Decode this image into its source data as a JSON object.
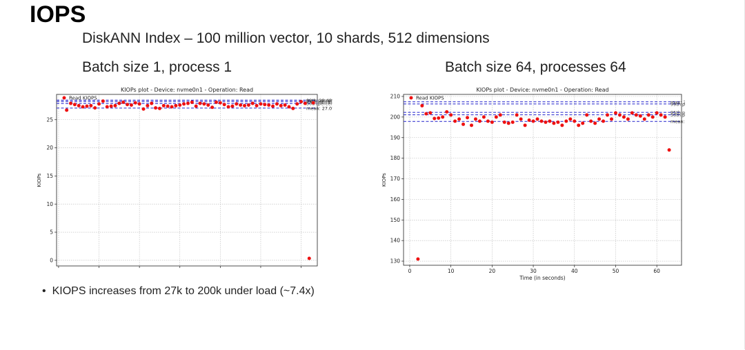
{
  "slide": {
    "title": "IOPS",
    "subtitle": "DiskANN Index – 100 million vector, 10 shards, 512 dimensions",
    "left_caption": "Batch size 1, process 1",
    "right_caption": "Batch size 64, processes 64",
    "bullet_symbol": "•",
    "bullet": "KIOPS increases from 27k to 200k under load (~7.4x)"
  },
  "colors": {
    "points": "#ee1111",
    "stat_lines": "#2222cc",
    "grid": "#b8b8b8"
  },
  "chart_data": [
    {
      "type": "scatter",
      "title": "KIOPs plot - Device: nvme0n1 - Operation: Read",
      "xlabel": "",
      "ylabel": "KIOPs",
      "legend": "Read KIOPS",
      "legend_position": "top-left",
      "xlim": [
        -0.5,
        64
      ],
      "ylim": [
        -1,
        29.5
      ],
      "xticks": [
        0,
        10,
        20,
        30,
        40,
        50,
        60
      ],
      "show_xtick_labels": false,
      "yticks": [
        0,
        5,
        10,
        15,
        20,
        25
      ],
      "grid": true,
      "x": [
        2,
        3,
        4,
        5,
        6,
        7,
        8,
        9,
        10,
        11,
        12,
        13,
        14,
        15,
        16,
        17,
        18,
        19,
        20,
        21,
        22,
        23,
        24,
        25,
        26,
        27,
        28,
        29,
        30,
        31,
        32,
        33,
        34,
        35,
        36,
        37,
        38,
        39,
        40,
        41,
        42,
        43,
        44,
        45,
        46,
        47,
        48,
        49,
        50,
        51,
        52,
        53,
        54,
        55,
        56,
        57,
        58,
        59,
        60,
        61,
        62,
        63
      ],
      "y": [
        26.7,
        27.9,
        27.7,
        27.5,
        27.3,
        27.4,
        27.5,
        27.1,
        27.8,
        28.3,
        27.3,
        27.4,
        27.5,
        27.9,
        28.1,
        27.7,
        27.6,
        28.0,
        27.8,
        26.9,
        27.5,
        27.9,
        27.1,
        27.0,
        27.5,
        27.4,
        27.3,
        27.5,
        27.6,
        27.8,
        27.9,
        28.1,
        27.4,
        27.9,
        27.8,
        27.6,
        27.2,
        28.1,
        28.0,
        27.7,
        27.3,
        27.4,
        27.8,
        27.6,
        27.5,
        27.6,
        27.9,
        27.5,
        27.8,
        27.7,
        27.6,
        27.4,
        27.8,
        27.5,
        27.6,
        27.3,
        27.0,
        27.8,
        28.2,
        27.9,
        0.35,
        28.0
      ],
      "reference_lines": [
        {
          "name": "max",
          "value": 28.48,
          "label": "max: 28.48"
        },
        {
          "name": "p99",
          "value": 28.44,
          "label": "99th percentile: 28.44"
        },
        {
          "name": "p95",
          "value": 28.2,
          "label": "95th percentile: 28.20"
        },
        {
          "name": "p50",
          "value": 27.88,
          "label": "50th percentile: 27.88"
        },
        {
          "name": "mean",
          "value": 27.07,
          "label": "mean: 27.07"
        }
      ]
    },
    {
      "type": "scatter",
      "title": "KIOPs plot - Device: nvme0n1 - Operation: Read",
      "xlabel": "Time (in seconds)",
      "ylabel": "KIOPs",
      "legend": "Read KIOPS",
      "legend_position": "top-left",
      "xlim": [
        -1.5,
        66
      ],
      "ylim": [
        128,
        211
      ],
      "xticks": [
        0,
        10,
        20,
        30,
        40,
        50,
        60
      ],
      "show_xtick_labels": true,
      "yticks": [
        130,
        140,
        150,
        160,
        170,
        180,
        190,
        200,
        210
      ],
      "grid": true,
      "x": [
        2,
        3,
        4,
        5,
        6,
        7,
        8,
        9,
        10,
        11,
        12,
        13,
        14,
        15,
        16,
        17,
        18,
        19,
        20,
        21,
        22,
        23,
        24,
        25,
        26,
        27,
        28,
        29,
        30,
        31,
        32,
        33,
        34,
        35,
        36,
        37,
        38,
        39,
        40,
        41,
        42,
        43,
        44,
        45,
        46,
        47,
        48,
        49,
        50,
        51,
        52,
        53,
        54,
        55,
        56,
        57,
        58,
        59,
        60,
        61,
        62,
        63
      ],
      "y": [
        131,
        205.5,
        201.6,
        202,
        199.3,
        199.5,
        200,
        202.5,
        201,
        198,
        199,
        196.5,
        199.7,
        196,
        199,
        198,
        200,
        198,
        197.5,
        200,
        201,
        197.5,
        197,
        197.5,
        201,
        199,
        196,
        198.5,
        198,
        199,
        198,
        197.5,
        198,
        197,
        197.5,
        196,
        198,
        199,
        198,
        196,
        197,
        201,
        198,
        197,
        199,
        198,
        201,
        199,
        202,
        201,
        200,
        199,
        202,
        201,
        200.5,
        199,
        201,
        200,
        202,
        201,
        200,
        184
      ],
      "reference_lines": [
        {
          "name": "max",
          "value": 207.39,
          "label": "max: 207.39"
        },
        {
          "name": "p99",
          "value": 206.36,
          "label": "99th percentile: 206.36"
        },
        {
          "name": "p95",
          "value": 202.26,
          "label": "95th percentile: 202.26"
        },
        {
          "name": "p50",
          "value": 201.07,
          "label": "50th percentile: 201.07"
        },
        {
          "name": "mean",
          "value": 197.88,
          "label": "mean: 197.88"
        }
      ]
    }
  ]
}
